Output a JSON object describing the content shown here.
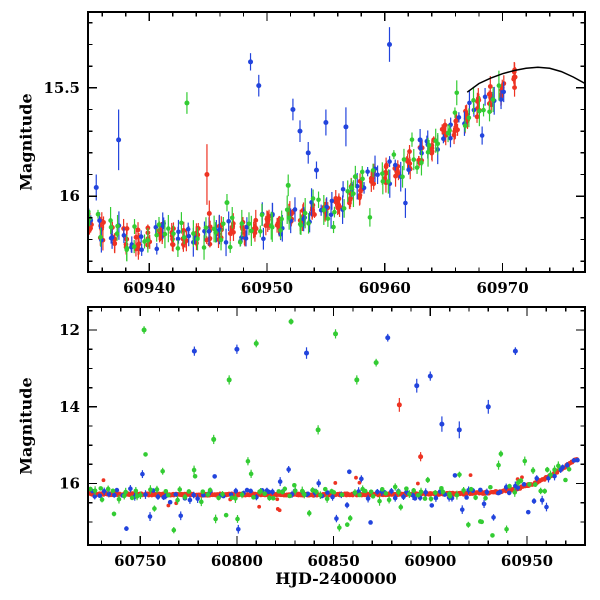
{
  "figure": {
    "background": "#ffffff"
  },
  "colors": {
    "blue": "#2244dd",
    "green": "#33cc33",
    "red": "#ee3322",
    "model": "#000000",
    "axis": "#000000"
  },
  "chart_data": [
    {
      "id": "recent-light-curve",
      "type": "scatter",
      "title": "",
      "ylabel": "Magnitude",
      "xlabel": "",
      "xlim": [
        60934.8,
        60977.0
      ],
      "ylim": [
        15.15,
        16.35
      ],
      "y_axis_inverted_magnitudes": true,
      "grid": false,
      "xticks": [
        60940,
        60950,
        60960,
        60970
      ],
      "xtick_labels": [
        "60940",
        "60950",
        "60960",
        "60970"
      ],
      "xminor": 2,
      "yticks": [
        15.5,
        16
      ],
      "ytick_labels": [
        "15.5",
        "16"
      ],
      "yminor": 0.1,
      "trend": [
        [
          60934.8,
          16.12
        ],
        [
          60936,
          16.16
        ],
        [
          60937.5,
          16.19
        ],
        [
          60939,
          16.2
        ],
        [
          60941,
          16.18
        ],
        [
          60943,
          16.18
        ],
        [
          60945,
          16.18
        ],
        [
          60947,
          16.17
        ],
        [
          60949,
          16.15
        ],
        [
          60951,
          16.12
        ],
        [
          60953,
          16.09
        ],
        [
          60955,
          16.04
        ],
        [
          60957,
          15.99
        ],
        [
          60959,
          15.93
        ],
        [
          60961,
          15.87
        ],
        [
          60963,
          15.8
        ],
        [
          60965,
          15.72
        ],
        [
          60967,
          15.63
        ],
        [
          60968.5,
          15.56
        ],
        [
          60970,
          15.49
        ],
        [
          60971.2,
          15.45
        ]
      ],
      "band": [
        {
          "color": "red",
          "x0": 60935,
          "x1": 60971,
          "step": 1.0,
          "per": 6,
          "xj": 0.18,
          "yj": 0.045,
          "e0": 0.015,
          "e1": 0.05,
          "wild": 0,
          "wamp": 0,
          "seed": 7,
          "r": 2.4
        },
        {
          "color": "blue",
          "x0": 60935,
          "x1": 60970.5,
          "step": 0.9,
          "per": 2,
          "xj": 0.3,
          "yj": 0.06,
          "e0": 0.02,
          "e1": 0.07,
          "wild": 0.06,
          "wamp": 0.25,
          "seed": 13,
          "r": 2.3
        },
        {
          "color": "green",
          "x0": 60935,
          "x1": 60970,
          "step": 0.8,
          "per": 2,
          "xj": 0.3,
          "yj": 0.07,
          "e0": 0.02,
          "e1": 0.07,
          "wild": 0.1,
          "wamp": 0.2,
          "seed": 29,
          "r": 2.3
        }
      ],
      "outliers": [
        [
          "blue",
          60935.5,
          15.96,
          0.06
        ],
        [
          "blue",
          60937.4,
          15.74,
          0.14
        ],
        [
          "blue",
          60948.6,
          15.38,
          0.04
        ],
        [
          "blue",
          60949.3,
          15.49,
          0.05
        ],
        [
          "blue",
          60952.2,
          15.6,
          0.05
        ],
        [
          "blue",
          60952.8,
          15.7,
          0.05
        ],
        [
          "blue",
          60953.5,
          15.8,
          0.05
        ],
        [
          "blue",
          60954.2,
          15.88,
          0.04
        ],
        [
          "blue",
          60955.0,
          15.66,
          0.06
        ],
        [
          "blue",
          60956.7,
          15.68,
          0.09
        ],
        [
          "blue",
          60960.4,
          15.3,
          0.08
        ],
        [
          "blue",
          60963.0,
          15.74,
          0.05
        ],
        [
          "green",
          60943.2,
          15.57,
          0.05
        ],
        [
          "green",
          60946.6,
          16.03,
          0.04
        ],
        [
          "green",
          60951.8,
          15.95,
          0.05
        ],
        [
          "green",
          60957.5,
          15.91,
          0.05
        ],
        [
          "red",
          60944.9,
          15.9,
          0.14
        ],
        [
          "red",
          60945.1,
          16.08,
          0.06
        ]
      ],
      "model_curve": [
        [
          60967,
          15.52
        ],
        [
          60968,
          15.48
        ],
        [
          60969,
          15.455
        ],
        [
          60970,
          15.435
        ],
        [
          60971,
          15.42
        ],
        [
          60972,
          15.41
        ],
        [
          60973,
          15.405
        ],
        [
          60974,
          15.41
        ],
        [
          60975,
          15.425
        ],
        [
          60976,
          15.45
        ],
        [
          60977,
          15.48
        ]
      ]
    },
    {
      "id": "full-light-curve",
      "type": "scatter",
      "title": "",
      "ylabel": "Magnitude",
      "xlabel": "HJD-2400000",
      "xlim": [
        60723,
        60980
      ],
      "ylim": [
        11.4,
        17.6
      ],
      "y_axis_inverted_magnitudes": true,
      "grid": false,
      "xticks": [
        60750,
        60800,
        60850,
        60900,
        60950
      ],
      "xtick_labels": [
        "60750",
        "60800",
        "60850",
        "60900",
        "60950"
      ],
      "xminor": 10,
      "yticks": [
        12,
        14,
        16
      ],
      "ytick_labels": [
        "12",
        "14",
        "16"
      ],
      "yminor": 0.5,
      "trend": [
        [
          60723,
          16.27
        ],
        [
          60750,
          16.28
        ],
        [
          60780,
          16.29
        ],
        [
          60810,
          16.28
        ],
        [
          60840,
          16.29
        ],
        [
          60870,
          16.28
        ],
        [
          60900,
          16.27
        ],
        [
          60920,
          16.26
        ],
        [
          60935,
          16.22
        ],
        [
          60945,
          16.13
        ],
        [
          60955,
          15.97
        ],
        [
          60963,
          15.78
        ],
        [
          60970,
          15.55
        ],
        [
          60976,
          15.35
        ],
        [
          60980,
          15.22
        ]
      ],
      "band": [
        {
          "color": "red",
          "x0": 60724,
          "x1": 60976,
          "step": 0.5,
          "per": 2,
          "xj": 0.2,
          "yj": 0.03,
          "e0": 0.01,
          "e1": 0.04,
          "wild": 0.02,
          "wamp": 0.5,
          "seed": 3,
          "r": 1.9
        },
        {
          "color": "blue",
          "x0": 60725,
          "x1": 60976,
          "step": 2.3,
          "per": 1,
          "xj": 1.0,
          "yj": 0.12,
          "e0": 0.03,
          "e1": 0.12,
          "wild": 0.22,
          "wamp": 0.9,
          "seed": 17,
          "r": 2.3
        },
        {
          "color": "green",
          "x0": 60725,
          "x1": 60972,
          "step": 2.0,
          "per": 1,
          "xj": 0.9,
          "yj": 0.15,
          "e0": 0.03,
          "e1": 0.12,
          "wild": 0.28,
          "wamp": 1.0,
          "seed": 23,
          "r": 2.3
        }
      ],
      "outliers": [
        [
          "green",
          60752,
          12.0,
          0.1
        ],
        [
          "green",
          60796,
          13.3,
          0.12
        ],
        [
          "green",
          60810,
          12.35,
          0.1
        ],
        [
          "green",
          60828,
          11.78,
          0.08
        ],
        [
          "green",
          60851,
          12.1,
          0.12
        ],
        [
          "green",
          60862,
          13.3,
          0.12
        ],
        [
          "green",
          60788,
          14.85,
          0.12
        ],
        [
          "green",
          60842,
          14.6,
          0.12
        ],
        [
          "green",
          60872,
          12.85,
          0.1
        ],
        [
          "blue",
          60778,
          12.55,
          0.12
        ],
        [
          "blue",
          60800,
          12.5,
          0.12
        ],
        [
          "blue",
          60836,
          12.6,
          0.15
        ],
        [
          "blue",
          60878,
          12.2,
          0.1
        ],
        [
          "blue",
          60893,
          13.45,
          0.18
        ],
        [
          "blue",
          60900,
          13.2,
          0.12
        ],
        [
          "blue",
          60906,
          14.45,
          0.2
        ],
        [
          "blue",
          60915,
          14.6,
          0.22
        ],
        [
          "blue",
          60930,
          14.0,
          0.18
        ],
        [
          "blue",
          60944,
          12.55,
          0.1
        ],
        [
          "red",
          60884,
          13.95,
          0.18
        ],
        [
          "red",
          60895,
          15.3,
          0.12
        ]
      ],
      "model_curve": []
    }
  ]
}
